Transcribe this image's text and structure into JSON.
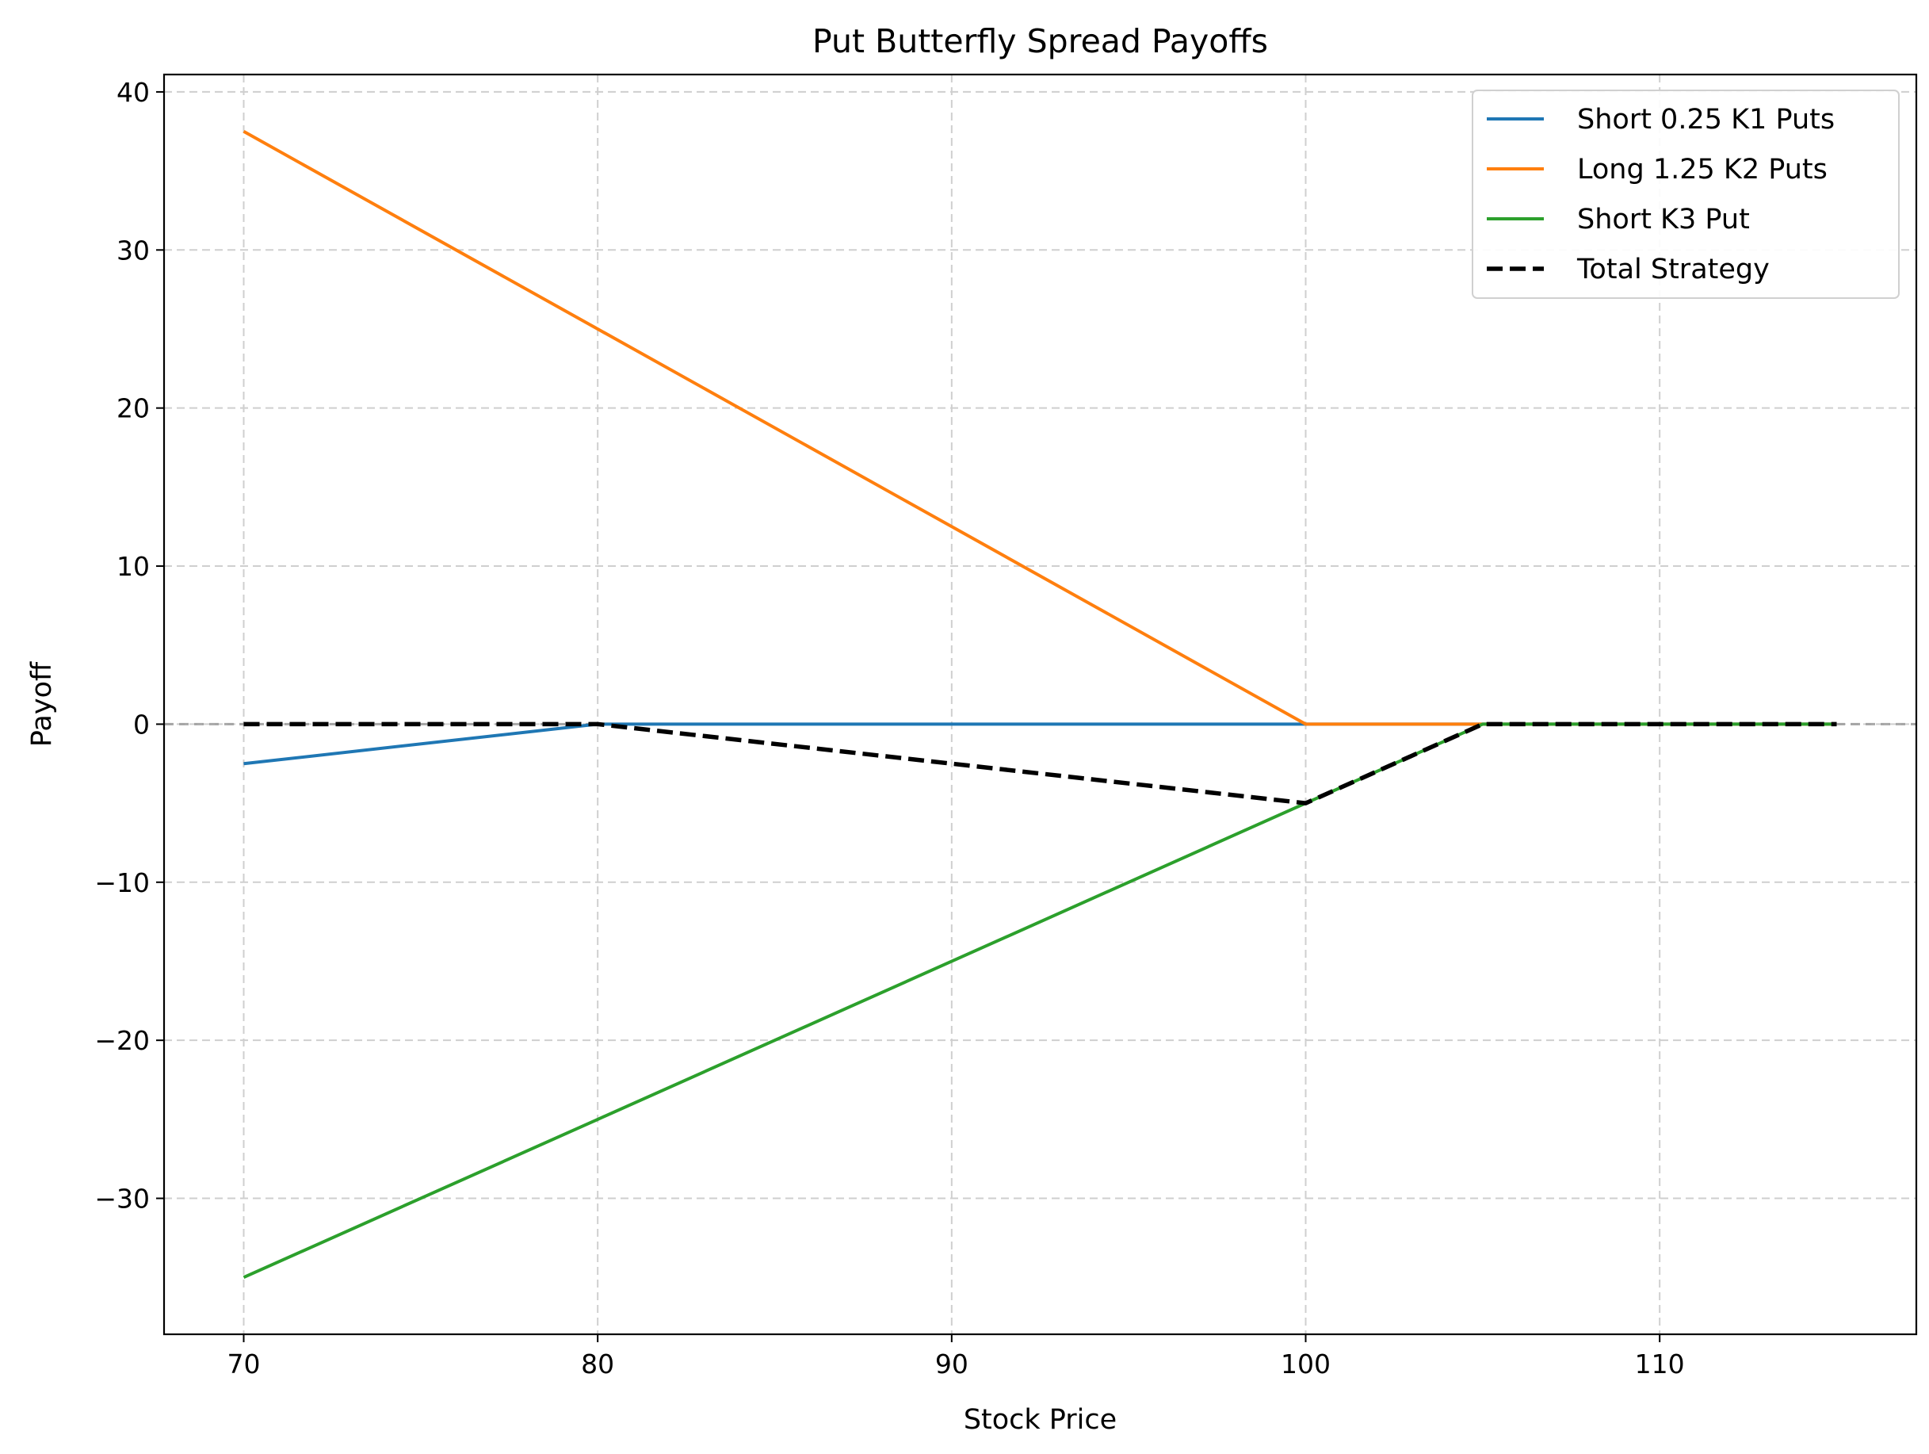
{
  "chart_data": {
    "type": "line",
    "title": "Put Butterfly Spread Payoffs",
    "xlabel": "Stock Price",
    "ylabel": "Payoff",
    "xlim": [
      67.75,
      117.25
    ],
    "ylim": [
      -38.6,
      41.1
    ],
    "xticks": [
      70,
      80,
      90,
      100,
      110
    ],
    "xtick_labels": [
      "70",
      "80",
      "90",
      "100",
      "110"
    ],
    "yticks": [
      -30,
      -20,
      -10,
      0,
      10,
      20,
      30,
      40
    ],
    "ytick_labels": [
      "−30",
      "−20",
      "−10",
      "0",
      "10",
      "20",
      "30",
      "40"
    ],
    "grid": true,
    "legend_position": "upper right",
    "zero_line": {
      "y": 0,
      "color": "#999999",
      "style": "dashed"
    },
    "series": [
      {
        "name": "Short 0.25 K1 Puts",
        "color": "#1f77b4",
        "style": "solid",
        "x": [
          70,
          80,
          100,
          105,
          115
        ],
        "y": [
          -2.5,
          0,
          0,
          0,
          0
        ]
      },
      {
        "name": "Long 1.25 K2 Puts",
        "color": "#ff7f0e",
        "style": "solid",
        "x": [
          70,
          80,
          100,
          105,
          115
        ],
        "y": [
          37.5,
          25,
          0,
          0,
          0
        ]
      },
      {
        "name": "Short K3 Put",
        "color": "#2ca02c",
        "style": "solid",
        "x": [
          70,
          80,
          100,
          105,
          115
        ],
        "y": [
          -35,
          -25,
          -5,
          0,
          0
        ]
      },
      {
        "name": "Total Strategy",
        "color": "#000000",
        "style": "dashed",
        "x": [
          70,
          80,
          100,
          105,
          115
        ],
        "y": [
          0,
          0,
          -5,
          0,
          0
        ]
      }
    ]
  }
}
